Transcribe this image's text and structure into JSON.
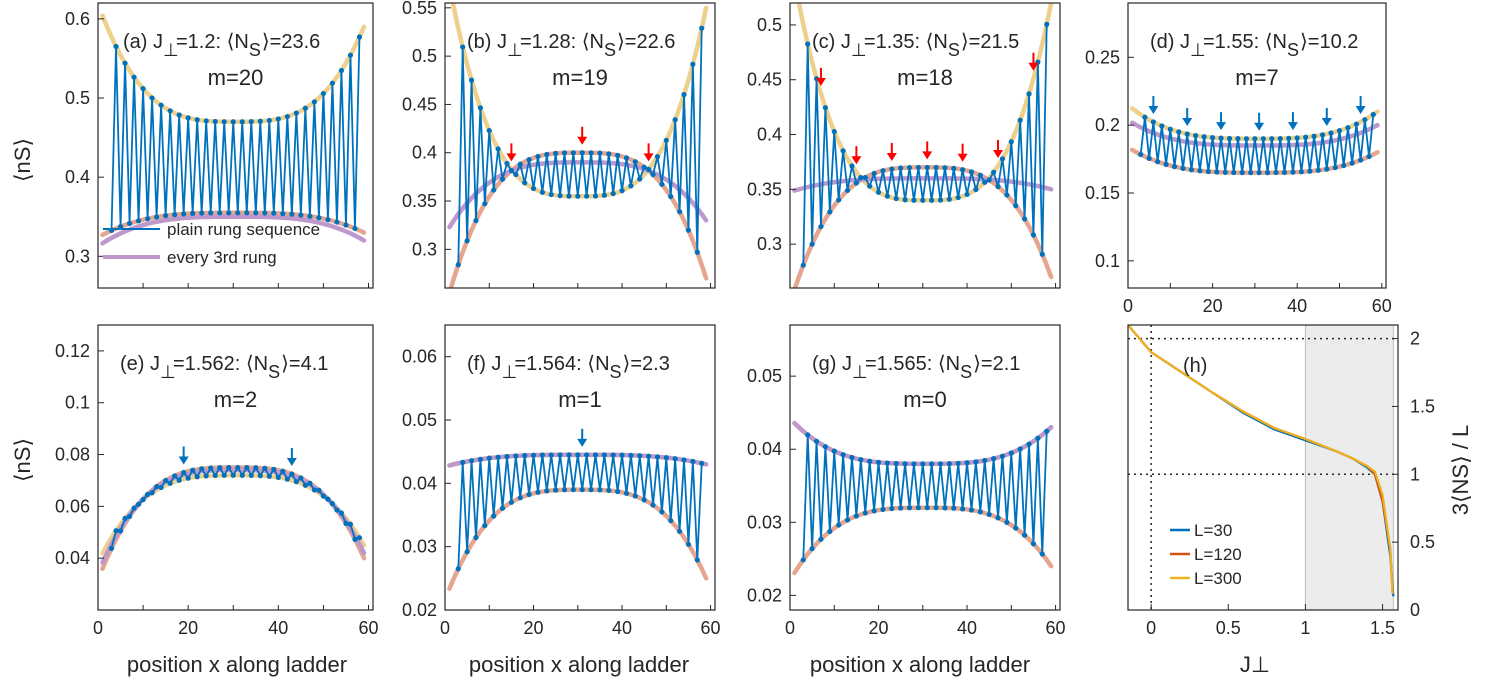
{
  "figure": {
    "xlabel": "position x along ladder",
    "ylabel": "⟨nS⟩",
    "hxlabel": "J⊥",
    "hylabel": "3⟨NS⟩ / L"
  },
  "legend_a": [
    "plain rung sequence",
    "every 3rd rung"
  ],
  "colors": {
    "blue": "#0072BD",
    "yellow": "#EDD08C",
    "salmon": "#E6A58F",
    "purple": "#BE97CB",
    "red": "#FF0000",
    "l30": "#0072BD",
    "l120": "#D95319",
    "l300": "#EDB120"
  },
  "chart_data": [
    {
      "id": "a",
      "type": "line",
      "label": "(a)",
      "jperp": "1.2",
      "ns": "23.6",
      "m": "m=20",
      "ylim": [
        0.26,
        0.62
      ],
      "yticks": [
        0.3,
        0.4,
        0.5,
        0.6
      ],
      "xticks": [],
      "xlim": [
        0,
        61
      ],
      "envelopes": {
        "upper": {
          "edge": 0.59,
          "center": 0.47
        },
        "lower": {
          "edge": 0.33,
          "center": 0.355
        },
        "mid": {
          "edge": 0.32,
          "center": 0.35
        }
      },
      "arrows": [],
      "arrow_color": "blue"
    },
    {
      "id": "b",
      "type": "line",
      "label": "(b)",
      "jperp": "1.28",
      "ns": "22.6",
      "m": "m=19",
      "ylim": [
        0.26,
        0.555
      ],
      "yticks": [
        0.3,
        0.35,
        0.4,
        0.45,
        0.5,
        0.55
      ],
      "xticks": [],
      "xlim": [
        0,
        61
      ],
      "envelopes": {
        "upper": {
          "edge": 0.55,
          "center": 0.355
        },
        "lower": {
          "edge": 0.27,
          "center": 0.4
        },
        "mid": {
          "edge": 0.33,
          "center": 0.39
        }
      },
      "arrows": [
        15,
        31,
        46
      ],
      "arrow_color": "red"
    },
    {
      "id": "c",
      "type": "line",
      "label": "(c)",
      "jperp": "1.35",
      "ns": "21.5",
      "m": "m=18",
      "ylim": [
        0.26,
        0.52
      ],
      "yticks": [
        0.3,
        0.35,
        0.4,
        0.45,
        0.5
      ],
      "xticks": [],
      "xlim": [
        0,
        61
      ],
      "envelopes": {
        "upper": {
          "edge": 0.52,
          "center": 0.34
        },
        "lower": {
          "edge": 0.27,
          "center": 0.37
        },
        "mid": {
          "edge": 0.35,
          "center": 0.36
        }
      },
      "arrows": [
        7,
        15,
        23,
        31,
        39,
        47,
        55
      ],
      "arrow_color": "red"
    },
    {
      "id": "d",
      "type": "line",
      "label": "(d)",
      "jperp": "1.55",
      "ns": "10.2",
      "m": "m=7",
      "ylim": [
        0.08,
        0.29
      ],
      "yticks": [
        0.1,
        0.15,
        0.2,
        0.25
      ],
      "xticks": [
        0,
        20,
        40,
        60
      ],
      "xlim": [
        0,
        61
      ],
      "envelopes": {
        "upper": {
          "edge": 0.21,
          "center": 0.19
        },
        "lower": {
          "edge": 0.18,
          "center": 0.165
        },
        "mid": {
          "edge": 0.2,
          "center": 0.185
        }
      },
      "arrows": [
        6,
        14,
        22,
        31,
        39,
        47,
        55
      ],
      "arrow_color": "blue"
    },
    {
      "id": "e",
      "type": "line",
      "label": "(e)",
      "jperp": "1.562",
      "ns": "4.1",
      "m": "m=2",
      "ylim": [
        0.02,
        0.13
      ],
      "yticks": [
        0.04,
        0.06,
        0.08,
        0.1,
        0.12
      ],
      "xticks": [
        0,
        20,
        40,
        60
      ],
      "xlim": [
        0,
        61
      ],
      "envelopes": {
        "upper": {
          "edge": 0.045,
          "center": 0.072
        },
        "lower": {
          "edge": 0.04,
          "center": 0.075
        },
        "mid": {
          "edge": 0.042,
          "center": 0.074
        }
      },
      "arrows": [
        19,
        43
      ],
      "arrow_color": "blue"
    },
    {
      "id": "f",
      "type": "line",
      "label": "(f)",
      "jperp": "1.564",
      "ns": "2.3",
      "m": "m=1",
      "ylim": [
        0.02,
        0.065
      ],
      "yticks": [
        0.02,
        0.03,
        0.04,
        0.05,
        0.06
      ],
      "xticks": [
        0,
        20,
        40,
        60
      ],
      "xlim": [
        0,
        61
      ],
      "envelopes": {
        "upper": {
          "edge": 0.043,
          "center": 0.0445
        },
        "lower": {
          "edge": 0.025,
          "center": 0.039
        },
        "mid": {
          "edge": 0.043,
          "center": 0.0445
        }
      },
      "arrows": [
        31
      ],
      "arrow_color": "blue"
    },
    {
      "id": "g",
      "type": "line",
      "label": "(g)",
      "jperp": "1.565",
      "ns": "2.1",
      "m": "m=0",
      "ylim": [
        0.018,
        0.057
      ],
      "yticks": [
        0.02,
        0.03,
        0.04,
        0.05
      ],
      "xticks": [
        0,
        20,
        40,
        60
      ],
      "xlim": [
        0,
        61
      ],
      "envelopes": {
        "upper": {
          "edge": 0.043,
          "center": 0.038
        },
        "lower": {
          "edge": 0.024,
          "center": 0.032
        },
        "mid": {
          "edge": 0.043,
          "center": 0.038
        }
      },
      "arrows": [],
      "arrow_color": "blue"
    },
    {
      "id": "h",
      "type": "line",
      "label": "(h)",
      "xlim": [
        -0.15,
        1.6
      ],
      "ylim": [
        0,
        2.1
      ],
      "xticks": [
        0,
        0.5,
        1,
        1.5
      ],
      "xticklabels": [
        "0",
        "0.5",
        "1",
        "1.5"
      ],
      "yticks": [
        0.5,
        1,
        1.5,
        2
      ],
      "yticklabels": [
        "0.5",
        "1",
        "1.5",
        "2"
      ],
      "shade": [
        1.0,
        1.57
      ],
      "hlines": [
        1,
        2
      ],
      "vline": 0,
      "series": [
        {
          "name": "L=30",
          "color": "l30",
          "x": [
            -0.15,
            0,
            0.2,
            0.4,
            0.6,
            0.8,
            1.0,
            1.2,
            1.3,
            1.4,
            1.45,
            1.5,
            1.55,
            1.57
          ],
          "y": [
            2.1,
            1.9,
            1.75,
            1.6,
            1.45,
            1.33,
            1.25,
            1.17,
            1.12,
            1.05,
            1.0,
            0.8,
            0.4,
            0.1
          ]
        },
        {
          "name": "L=120",
          "color": "l120",
          "x": [
            -0.15,
            0,
            0.2,
            0.4,
            0.6,
            0.8,
            1.0,
            1.2,
            1.3,
            1.4,
            1.45,
            1.5,
            1.55,
            1.565
          ],
          "y": [
            2.1,
            1.9,
            1.75,
            1.6,
            1.46,
            1.34,
            1.26,
            1.17,
            1.12,
            1.06,
            1.0,
            0.8,
            0.45,
            0.12
          ]
        },
        {
          "name": "L=300",
          "color": "l300",
          "x": [
            -0.15,
            0,
            0.2,
            0.4,
            0.6,
            0.8,
            1.0,
            1.2,
            1.3,
            1.4,
            1.45,
            1.5,
            1.55,
            1.565
          ],
          "y": [
            2.1,
            1.9,
            1.75,
            1.6,
            1.46,
            1.34,
            1.26,
            1.17,
            1.12,
            1.06,
            1.02,
            0.85,
            0.45,
            0.12
          ]
        }
      ]
    }
  ]
}
